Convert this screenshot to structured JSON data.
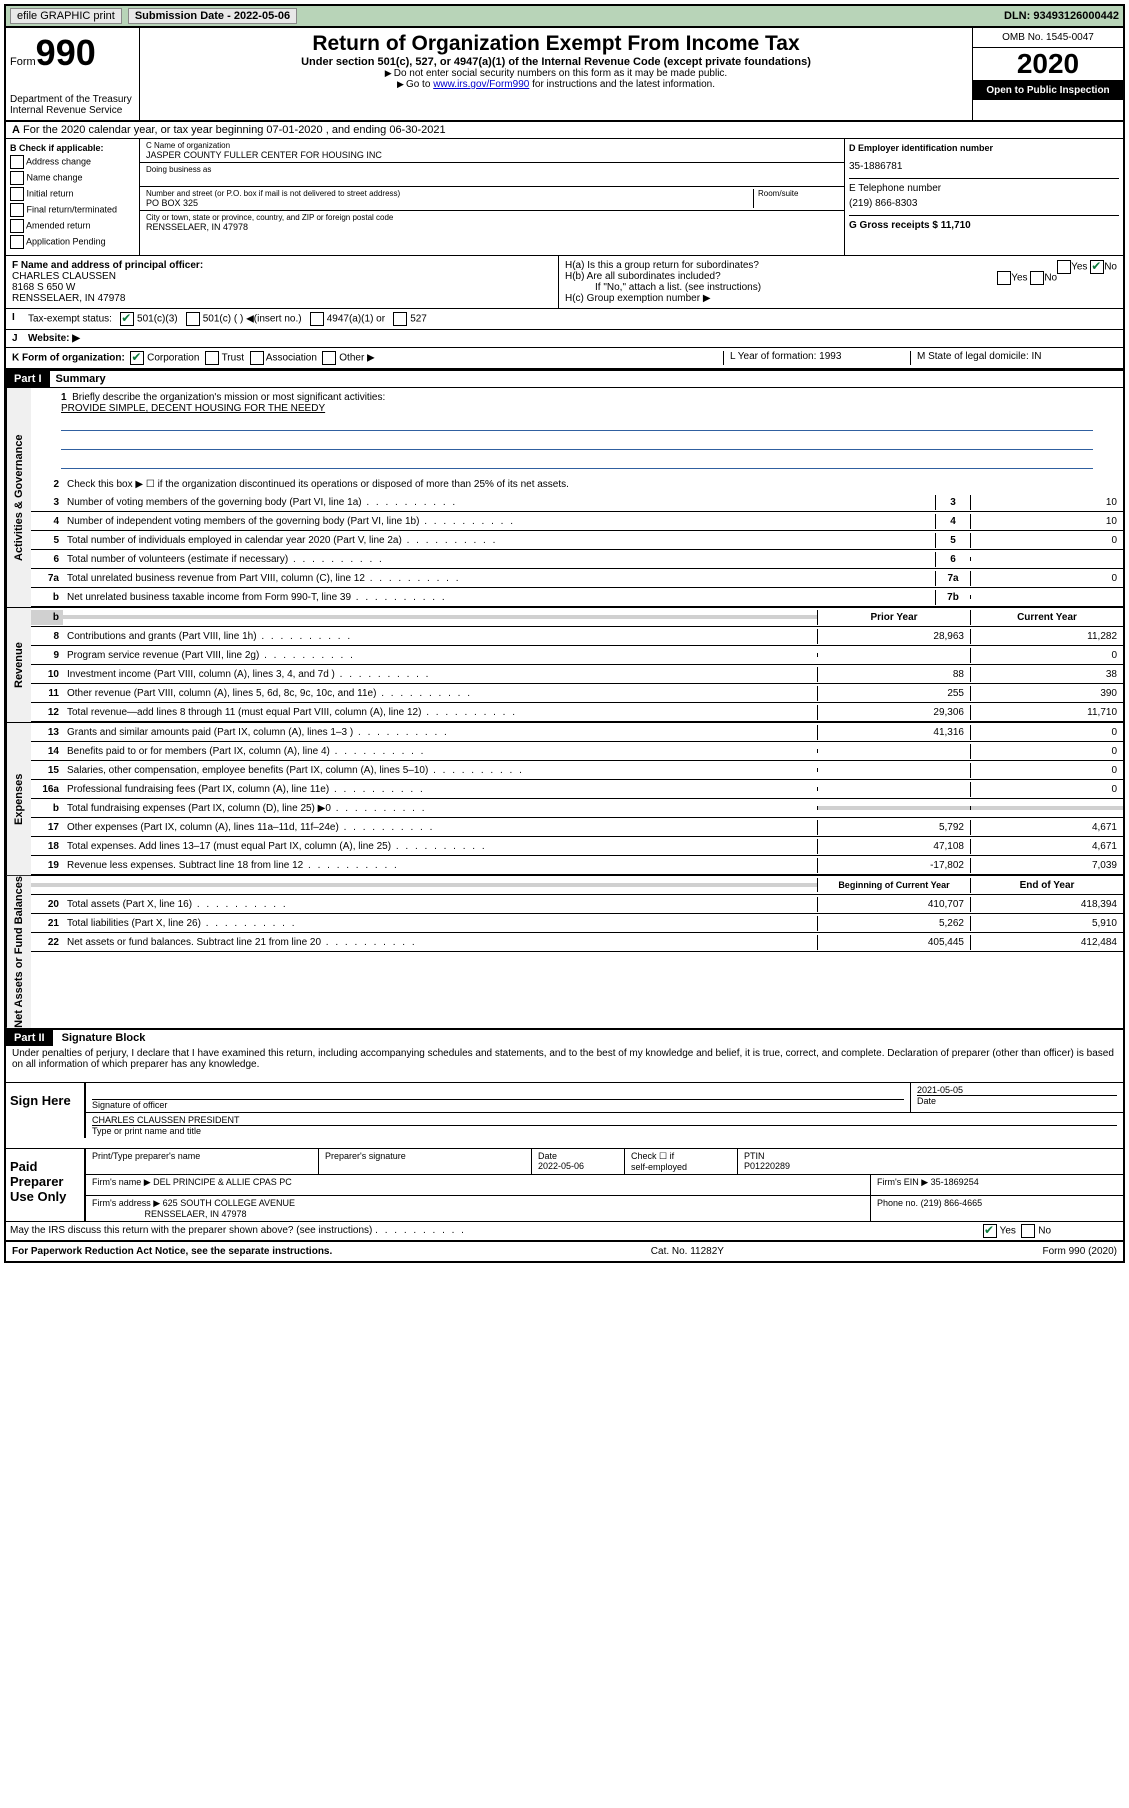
{
  "top_bar": {
    "efile": "efile GRAPHIC print",
    "sub_date_label": "Submission Date - 2022-05-06",
    "dln_label": "DLN: 93493126000442"
  },
  "header": {
    "form_label": "Form",
    "form_num": "990",
    "dept": "Department of the Treasury\nInternal Revenue Service",
    "title": "Return of Organization Exempt From Income Tax",
    "sub1": "Under section 501(c), 527, or 4947(a)(1) of the Internal Revenue Code (except private foundations)",
    "sub2": "Do not enter social security numbers on this form as it may be made public.",
    "sub3_pre": "Go to ",
    "sub3_link": "www.irs.gov/Form990",
    "sub3_post": " for instructions and the latest information.",
    "omb": "OMB No. 1545-0047",
    "year": "2020",
    "inspect": "Open to Public Inspection"
  },
  "row_a": "For the 2020 calendar year, or tax year beginning 07-01-2020    , and ending 06-30-2021",
  "section_b": {
    "label": "B Check if applicable:",
    "items": [
      "Address change",
      "Name change",
      "Initial return",
      "Final return/terminated",
      "Amended return",
      "Application Pending"
    ]
  },
  "section_c": {
    "name_label": "C Name of organization",
    "name": "JASPER COUNTY FULLER CENTER FOR HOUSING INC",
    "dba_label": "Doing business as",
    "addr_label": "Number and street (or P.O. box if mail is not delivered to street address)",
    "room_label": "Room/suite",
    "addr": "PO BOX 325",
    "city_label": "City or town, state or province, country, and ZIP or foreign postal code",
    "city": "RENSSELAER, IN  47978"
  },
  "section_d": {
    "ein_label": "D Employer identification number",
    "ein": "35-1886781",
    "phone_label": "E Telephone number",
    "phone": "(219) 866-8303",
    "gross_label": "G Gross receipts $ 11,710"
  },
  "section_f": {
    "label": "F  Name and address of principal officer:",
    "name": "CHARLES CLAUSSEN",
    "addr1": "8168 S 650 W",
    "addr2": "RENSSELAER, IN  47978"
  },
  "section_h": {
    "ha": "H(a)  Is this a group return for subordinates?",
    "hb": "H(b)  Are all subordinates included?",
    "hb_note": "If \"No,\" attach a list. (see instructions)",
    "hc": "H(c)  Group exemption number ▶"
  },
  "row_i": {
    "label": "Tax-exempt status:",
    "opts": [
      "501(c)(3)",
      "501(c) (  ) ◀(insert no.)",
      "4947(a)(1) or",
      "527"
    ]
  },
  "row_j": "Website: ▶",
  "row_k": {
    "left": "K Form of organization:",
    "opts": [
      "Corporation",
      "Trust",
      "Association",
      "Other ▶"
    ],
    "mid": "L Year of formation: 1993",
    "right": "M State of legal domicile: IN"
  },
  "part1": {
    "header": "Part I",
    "title": "Summary",
    "line1_label": "Briefly describe the organization's mission or most significant activities:",
    "line1_val": "PROVIDE SIMPLE, DECENT HOUSING FOR THE NEEDY",
    "line2": "Check this box ▶ ☐  if the organization discontinued its operations or disposed of more than 25% of its net assets.",
    "rows_a": [
      {
        "n": "3",
        "t": "Number of voting members of the governing body (Part VI, line 1a)",
        "box": "3",
        "v": "10"
      },
      {
        "n": "4",
        "t": "Number of independent voting members of the governing body (Part VI, line 1b)",
        "box": "4",
        "v": "10"
      },
      {
        "n": "5",
        "t": "Total number of individuals employed in calendar year 2020 (Part V, line 2a)",
        "box": "5",
        "v": "0"
      },
      {
        "n": "6",
        "t": "Total number of volunteers (estimate if necessary)",
        "box": "6",
        "v": ""
      },
      {
        "n": "7a",
        "t": "Total unrelated business revenue from Part VIII, column (C), line 12",
        "box": "7a",
        "v": "0"
      },
      {
        "n": "b",
        "t": "Net unrelated business taxable income from Form 990-T, line 39",
        "box": "7b",
        "v": ""
      }
    ],
    "col_prior": "Prior Year",
    "col_current": "Current Year",
    "rows_rev": [
      {
        "n": "8",
        "t": "Contributions and grants (Part VIII, line 1h)",
        "p": "28,963",
        "c": "11,282"
      },
      {
        "n": "9",
        "t": "Program service revenue (Part VIII, line 2g)",
        "p": "",
        "c": "0"
      },
      {
        "n": "10",
        "t": "Investment income (Part VIII, column (A), lines 3, 4, and 7d )",
        "p": "88",
        "c": "38"
      },
      {
        "n": "11",
        "t": "Other revenue (Part VIII, column (A), lines 5, 6d, 8c, 9c, 10c, and 11e)",
        "p": "255",
        "c": "390"
      },
      {
        "n": "12",
        "t": "Total revenue—add lines 8 through 11 (must equal Part VIII, column (A), line 12)",
        "p": "29,306",
        "c": "11,710"
      }
    ],
    "rows_exp": [
      {
        "n": "13",
        "t": "Grants and similar amounts paid (Part IX, column (A), lines 1–3 )",
        "p": "41,316",
        "c": "0"
      },
      {
        "n": "14",
        "t": "Benefits paid to or for members (Part IX, column (A), line 4)",
        "p": "",
        "c": "0"
      },
      {
        "n": "15",
        "t": "Salaries, other compensation, employee benefits (Part IX, column (A), lines 5–10)",
        "p": "",
        "c": "0"
      },
      {
        "n": "16a",
        "t": "Professional fundraising fees (Part IX, column (A), line 11e)",
        "p": "",
        "c": "0"
      },
      {
        "n": "b",
        "t": "Total fundraising expenses (Part IX, column (D), line 25) ▶0",
        "p": "gray",
        "c": "gray"
      },
      {
        "n": "17",
        "t": "Other expenses (Part IX, column (A), lines 11a–11d, 11f–24e)",
        "p": "5,792",
        "c": "4,671"
      },
      {
        "n": "18",
        "t": "Total expenses. Add lines 13–17 (must equal Part IX, column (A), line 25)",
        "p": "47,108",
        "c": "4,671"
      },
      {
        "n": "19",
        "t": "Revenue less expenses. Subtract line 18 from line 12",
        "p": "-17,802",
        "c": "7,039"
      }
    ],
    "col_begin": "Beginning of Current Year",
    "col_end": "End of Year",
    "rows_net": [
      {
        "n": "20",
        "t": "Total assets (Part X, line 16)",
        "p": "410,707",
        "c": "418,394"
      },
      {
        "n": "21",
        "t": "Total liabilities (Part X, line 26)",
        "p": "5,262",
        "c": "5,910"
      },
      {
        "n": "22",
        "t": "Net assets or fund balances. Subtract line 21 from line 20",
        "p": "405,445",
        "c": "412,484"
      }
    ],
    "vtab_a": "Activities & Governance",
    "vtab_r": "Revenue",
    "vtab_e": "Expenses",
    "vtab_n": "Net Assets or Fund Balances"
  },
  "part2": {
    "header": "Part II",
    "title": "Signature Block",
    "penalty": "Under penalties of perjury, I declare that I have examined this return, including accompanying schedules and statements, and to the best of my knowledge and belief, it is true, correct, and complete. Declaration of preparer (other than officer) is based on all information of which preparer has any knowledge."
  },
  "sign": {
    "label": "Sign Here",
    "sig_label": "Signature of officer",
    "date_label": "Date",
    "date": "2021-05-05",
    "name": "CHARLES CLAUSSEN  PRESIDENT",
    "name_label": "Type or print name and title"
  },
  "paid": {
    "label": "Paid Preparer Use Only",
    "col1": "Print/Type preparer's name",
    "col2": "Preparer's signature",
    "col3": "Date",
    "date": "2022-05-06",
    "col4_a": "Check ☐ if",
    "col4_b": "self-employed",
    "col5": "PTIN",
    "ptin": "P01220289",
    "firm_name_label": "Firm's name    ▶",
    "firm_name": "DEL PRINCIPE & ALLIE CPAS PC",
    "firm_ein_label": "Firm's EIN ▶",
    "firm_ein": "35-1869254",
    "firm_addr_label": "Firm's address ▶",
    "firm_addr1": "625 SOUTH COLLEGE AVENUE",
    "firm_addr2": "RENSSELAER, IN  47978",
    "phone_label": "Phone no.",
    "phone": "(219) 866-4665"
  },
  "discuss": "May the IRS discuss this return with the preparer shown above? (see instructions)",
  "footer": {
    "left": "For Paperwork Reduction Act Notice, see the separate instructions.",
    "mid": "Cat. No. 11282Y",
    "right": "Form 990 (2020)"
  }
}
